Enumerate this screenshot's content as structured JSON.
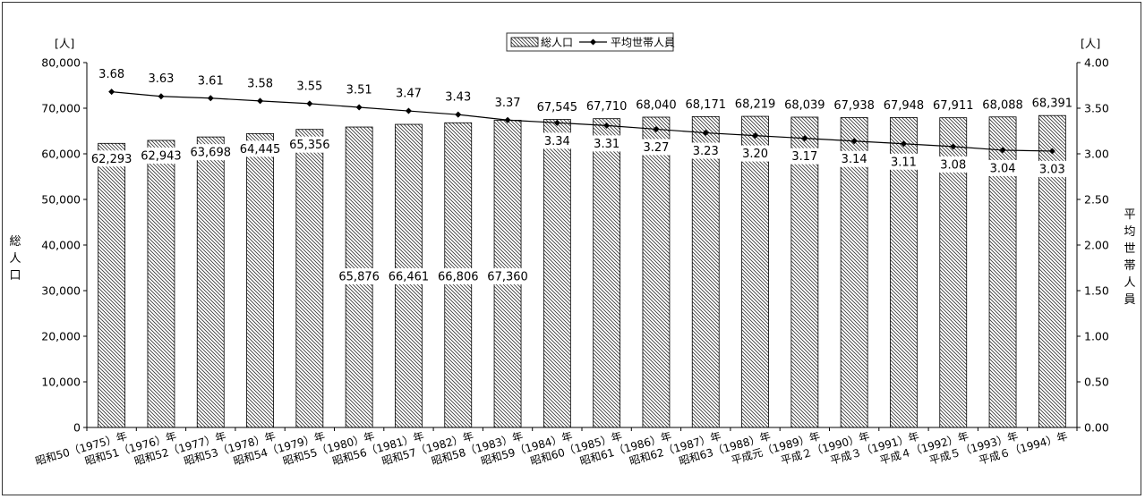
{
  "chart_data": {
    "type": "bar",
    "categories": [
      "昭和50（1975）年",
      "昭和51（1976）年",
      "昭和52（1977）年",
      "昭和53（1978）年",
      "昭和54（1979）年",
      "昭和55（1980）年",
      "昭和56（1981）年",
      "昭和57（1982）年",
      "昭和58（1983）年",
      "昭和59（1984）年",
      "昭和60（1985）年",
      "昭和61（1986）年",
      "昭和62（1987）年",
      "昭和63（1988）年",
      "平成元（1989）年",
      "平成２（1990）年",
      "平成３（1991）年",
      "平成４（1992）年",
      "平成５（1993）年",
      "平成６（1994）年"
    ],
    "series": [
      {
        "name": "総人口",
        "type": "bar",
        "axis": "left",
        "values": [
          62293,
          62943,
          63698,
          64445,
          65356,
          65876,
          66461,
          66806,
          67360,
          67545,
          67710,
          68040,
          68171,
          68219,
          68039,
          67938,
          67948,
          67911,
          68088,
          68391
        ],
        "labels": [
          "62,293",
          "62,943",
          "63,698",
          "64,445",
          "65,356",
          "65,876",
          "66,461",
          "66,806",
          "67,360",
          "67,545",
          "67,710",
          "68,040",
          "68,171",
          "68,219",
          "68,039",
          "67,938",
          "67,948",
          "67,911",
          "68,088",
          "68,391"
        ]
      },
      {
        "name": "平均世帯人員",
        "type": "line",
        "axis": "right",
        "values": [
          3.68,
          3.63,
          3.61,
          3.58,
          3.55,
          3.51,
          3.47,
          3.43,
          3.37,
          3.34,
          3.31,
          3.27,
          3.23,
          3.2,
          3.17,
          3.14,
          3.11,
          3.08,
          3.04,
          3.03
        ],
        "labels": [
          "3.68",
          "3.63",
          "3.61",
          "3.58",
          "3.55",
          "3.51",
          "3.47",
          "3.43",
          "3.37",
          "3.34",
          "3.31",
          "3.27",
          "3.23",
          "3.20",
          "3.17",
          "3.14",
          "3.11",
          "3.08",
          "3.04",
          "3.03"
        ]
      }
    ],
    "y_left": {
      "title": "総人口",
      "unit": "[人]",
      "ylim": [
        0,
        80000
      ],
      "ticks": [
        "0",
        "10,000",
        "20,000",
        "30,000",
        "40,000",
        "50,000",
        "60,000",
        "70,000",
        "80,000"
      ]
    },
    "y_right": {
      "title": "平均世帯人員",
      "unit": "[人]",
      "ylim": [
        0,
        4
      ],
      "ticks": [
        "0.00",
        "0.50",
        "1.00",
        "1.50",
        "2.00",
        "2.50",
        "3.00",
        "3.50",
        "4.00"
      ]
    },
    "legend": {
      "placement": "top-center",
      "entries": [
        "総人口",
        "平均世帯人員"
      ]
    },
    "grid": false
  }
}
